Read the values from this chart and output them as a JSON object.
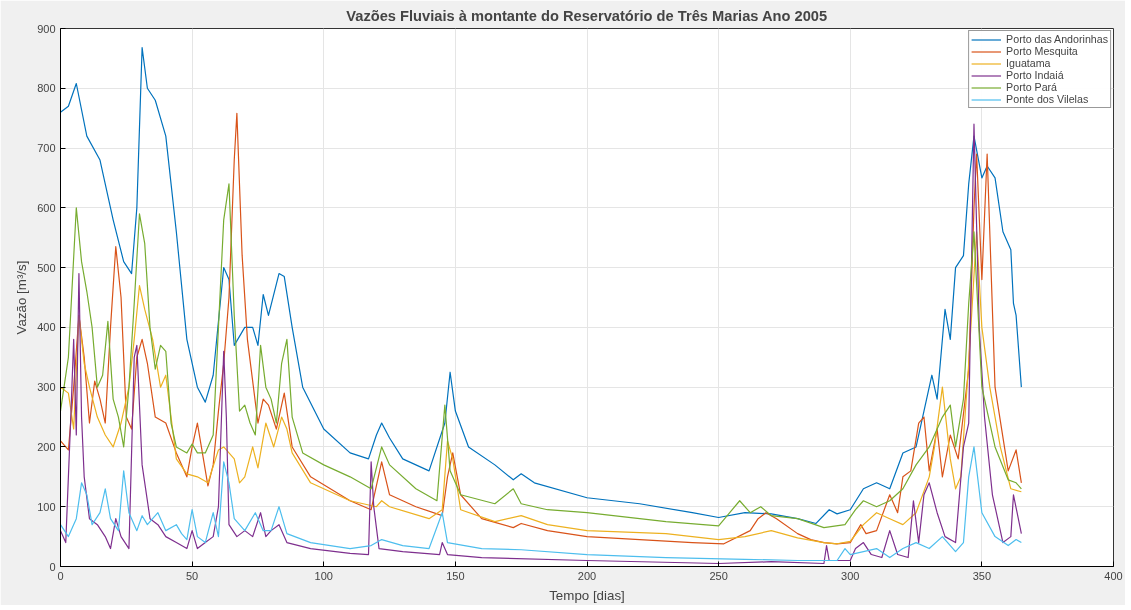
{
  "chart_data": {
    "type": "line",
    "title": "Vazões Fluviais à montante do Reservatório de Três Marias Ano 2005",
    "xlabel": "Tempo [dias]",
    "ylabel": "Vazão [m³/s]",
    "xlim": [
      0,
      400
    ],
    "ylim": [
      0,
      900
    ],
    "xticks": [
      0,
      50,
      100,
      150,
      200,
      250,
      300,
      350,
      400
    ],
    "yticks": [
      0,
      100,
      200,
      300,
      400,
      500,
      600,
      700,
      800,
      900
    ],
    "grid": true,
    "legend": "top right",
    "marker": "none",
    "line_style": "solid",
    "series": [
      {
        "name": "Porto das Andorinhas",
        "color": "#0072bd",
        "x": [
          0,
          3,
          6,
          10,
          15,
          20,
          24,
          27,
          29,
          31,
          33,
          36,
          40,
          44,
          48,
          52,
          55,
          58,
          62,
          64,
          66,
          70,
          73,
          75,
          77,
          79,
          83,
          85,
          88,
          92,
          100,
          110,
          117,
          120,
          122,
          125,
          130,
          140,
          146,
          148,
          150,
          155,
          165,
          172,
          175,
          180,
          200,
          220,
          240,
          250,
          260,
          270,
          280,
          287,
          292,
          295,
          300,
          305,
          310,
          315,
          320,
          325,
          328,
          331,
          333,
          336,
          338,
          340,
          343,
          345,
          347,
          350,
          352,
          355,
          358,
          361,
          362,
          363,
          365
        ],
        "values": [
          760,
          770,
          808,
          720,
          680,
          580,
          510,
          490,
          600,
          868,
          800,
          780,
          720,
          560,
          380,
          300,
          275,
          320,
          500,
          480,
          370,
          400,
          400,
          370,
          455,
          420,
          490,
          485,
          400,
          300,
          230,
          190,
          180,
          220,
          240,
          215,
          180,
          160,
          240,
          325,
          260,
          200,
          170,
          145,
          155,
          140,
          115,
          105,
          90,
          82,
          90,
          88,
          80,
          72,
          95,
          88,
          95,
          130,
          140,
          130,
          190,
          200,
          260,
          320,
          280,
          430,
          380,
          500,
          520,
          640,
          720,
          650,
          670,
          650,
          560,
          530,
          440,
          420,
          300
        ]
      },
      {
        "name": "Porto Mesquita",
        "color": "#d95319",
        "x": [
          0,
          3,
          5,
          7,
          9,
          11,
          13,
          15,
          17,
          19,
          21,
          23,
          25,
          27,
          29,
          31,
          33,
          36,
          40,
          44,
          48,
          50,
          52,
          56,
          58,
          60,
          62,
          64,
          66,
          67,
          69,
          71,
          73,
          75,
          77,
          79,
          82,
          85,
          88,
          95,
          110,
          118,
          122,
          125,
          135,
          145,
          147,
          149,
          152,
          160,
          172,
          175,
          185,
          200,
          220,
          240,
          252,
          262,
          265,
          268,
          272,
          280,
          285,
          290,
          295,
          300,
          304,
          306,
          310,
          315,
          318,
          320,
          323,
          326,
          328,
          330,
          333,
          335,
          338,
          341,
          345,
          347,
          348,
          350,
          352,
          355,
          360,
          363,
          365
        ],
        "values": [
          210,
          195,
          300,
          420,
          350,
          240,
          310,
          280,
          240,
          400,
          535,
          450,
          250,
          230,
          350,
          380,
          340,
          250,
          240,
          190,
          150,
          200,
          240,
          135,
          170,
          260,
          340,
          450,
          680,
          758,
          520,
          380,
          310,
          240,
          280,
          270,
          230,
          290,
          200,
          150,
          110,
          95,
          175,
          120,
          100,
          85,
          150,
          190,
          120,
          80,
          65,
          72,
          60,
          50,
          45,
          40,
          38,
          60,
          80,
          90,
          80,
          55,
          45,
          40,
          38,
          40,
          70,
          55,
          60,
          120,
          90,
          150,
          160,
          240,
          250,
          160,
          230,
          150,
          220,
          180,
          330,
          600,
          690,
          480,
          690,
          300,
          160,
          195,
          140
        ]
      },
      {
        "name": "Iguatama",
        "color": "#edb120",
        "x": [
          0,
          3,
          5,
          7,
          9,
          11,
          14,
          17,
          20,
          23,
          26,
          28,
          30,
          32,
          35,
          38,
          40,
          44,
          48,
          52,
          56,
          60,
          62,
          66,
          68,
          70,
          73,
          75,
          78,
          81,
          84,
          86,
          88,
          95,
          110,
          120,
          122,
          125,
          140,
          145,
          147,
          149,
          152,
          165,
          175,
          185,
          200,
          230,
          250,
          260,
          270,
          280,
          290,
          295,
          300,
          305,
          310,
          315,
          320,
          325,
          330,
          332,
          335,
          338,
          340,
          342,
          345,
          348,
          350,
          353,
          357,
          361,
          365
        ],
        "values": [
          300,
          290,
          230,
          420,
          340,
          300,
          250,
          220,
          200,
          240,
          300,
          380,
          470,
          430,
          380,
          300,
          320,
          180,
          155,
          150,
          140,
          195,
          200,
          180,
          140,
          150,
          200,
          165,
          240,
          200,
          250,
          230,
          190,
          140,
          110,
          100,
          110,
          100,
          80,
          95,
          210,
          180,
          95,
          75,
          85,
          70,
          60,
          55,
          45,
          50,
          60,
          48,
          40,
          38,
          42,
          70,
          90,
          80,
          70,
          90,
          150,
          200,
          300,
          180,
          130,
          150,
          340,
          560,
          400,
          300,
          200,
          130,
          125
        ]
      },
      {
        "name": "Porto Indaiá",
        "color": "#7e2f8e",
        "x": [
          0,
          2,
          4,
          5,
          6,
          7,
          8,
          9,
          11,
          14,
          17,
          19,
          21,
          23,
          26,
          28,
          29,
          31,
          34,
          37,
          40,
          44,
          48,
          50,
          52,
          55,
          58,
          60,
          62,
          63,
          64,
          67,
          70,
          73,
          76,
          78,
          80,
          83,
          86,
          95,
          110,
          117,
          118,
          119,
          121,
          130,
          144,
          145,
          147,
          160,
          200,
          250,
          270,
          290,
          291,
          292,
          300,
          302,
          305,
          308,
          312,
          315,
          318,
          322,
          324,
          326,
          328,
          330,
          333,
          336,
          340,
          343,
          345,
          347,
          349,
          351,
          354,
          358,
          361,
          362,
          365
        ],
        "values": [
          60,
          40,
          260,
          380,
          220,
          490,
          250,
          150,
          80,
          70,
          50,
          30,
          80,
          50,
          30,
          350,
          370,
          170,
          80,
          70,
          50,
          40,
          30,
          60,
          30,
          40,
          50,
          100,
          360,
          250,
          70,
          50,
          60,
          50,
          90,
          50,
          60,
          70,
          40,
          30,
          22,
          20,
          175,
          100,
          30,
          25,
          20,
          40,
          20,
          15,
          10,
          5,
          8,
          5,
          35,
          10,
          10,
          30,
          40,
          20,
          15,
          60,
          20,
          15,
          110,
          40,
          120,
          140,
          90,
          50,
          40,
          200,
          240,
          740,
          400,
          250,
          120,
          40,
          50,
          120,
          55
        ]
      },
      {
        "name": "Porto Pará",
        "color": "#77ac30",
        "x": [
          0,
          3,
          6,
          8,
          10,
          12,
          14,
          16,
          18,
          20,
          22,
          24,
          26,
          28,
          30,
          32,
          34,
          36,
          38,
          40,
          42,
          44,
          48,
          50,
          52,
          55,
          58,
          60,
          62,
          64,
          66,
          68,
          70,
          72,
          74,
          76,
          78,
          80,
          82,
          84,
          86,
          88,
          92,
          100,
          110,
          118,
          122,
          125,
          135,
          143,
          146,
          148,
          152,
          165,
          172,
          175,
          185,
          200,
          230,
          250,
          258,
          262,
          266,
          270,
          280,
          290,
          298,
          302,
          305,
          310,
          315,
          320,
          325,
          330,
          335,
          338,
          340,
          343,
          345,
          347,
          350,
          355,
          360,
          363,
          365
        ],
        "values": [
          260,
          350,
          600,
          510,
          460,
          400,
          300,
          320,
          410,
          280,
          250,
          200,
          300,
          440,
          590,
          540,
          400,
          330,
          370,
          360,
          240,
          200,
          190,
          205,
          190,
          190,
          220,
          400,
          580,
          640,
          420,
          260,
          270,
          240,
          220,
          370,
          300,
          280,
          240,
          340,
          380,
          250,
          190,
          170,
          150,
          130,
          200,
          170,
          130,
          110,
          270,
          160,
          120,
          105,
          130,
          105,
          95,
          90,
          75,
          68,
          110,
          90,
          100,
          85,
          80,
          65,
          70,
          95,
          110,
          100,
          110,
          130,
          170,
          200,
          250,
          270,
          200,
          280,
          440,
          560,
          300,
          200,
          145,
          140,
          130
        ]
      },
      {
        "name": "Ponte dos Vilelas",
        "color": "#4dbeee",
        "x": [
          0,
          3,
          6,
          8,
          10,
          12,
          15,
          17,
          19,
          22,
          24,
          26,
          29,
          31,
          33,
          37,
          40,
          44,
          46,
          48,
          50,
          52,
          55,
          58,
          60,
          62,
          64,
          66,
          70,
          74,
          77,
          80,
          83,
          86,
          95,
          110,
          118,
          120,
          122,
          130,
          140,
          145,
          147,
          160,
          175,
          200,
          230,
          260,
          280,
          295,
          298,
          300,
          305,
          310,
          315,
          320,
          325,
          330,
          335,
          340,
          343,
          345,
          347,
          350,
          355,
          360,
          363,
          365
        ],
        "values": [
          70,
          50,
          80,
          140,
          120,
          70,
          90,
          130,
          80,
          60,
          160,
          90,
          60,
          85,
          70,
          90,
          60,
          70,
          55,
          45,
          95,
          50,
          40,
          90,
          50,
          175,
          140,
          80,
          60,
          90,
          60,
          60,
          100,
          55,
          40,
          30,
          35,
          40,
          45,
          35,
          30,
          90,
          40,
          30,
          28,
          20,
          15,
          12,
          10,
          10,
          30,
          20,
          25,
          30,
          15,
          30,
          40,
          30,
          50,
          25,
          40,
          150,
          200,
          90,
          50,
          35,
          45,
          40
        ]
      }
    ]
  }
}
